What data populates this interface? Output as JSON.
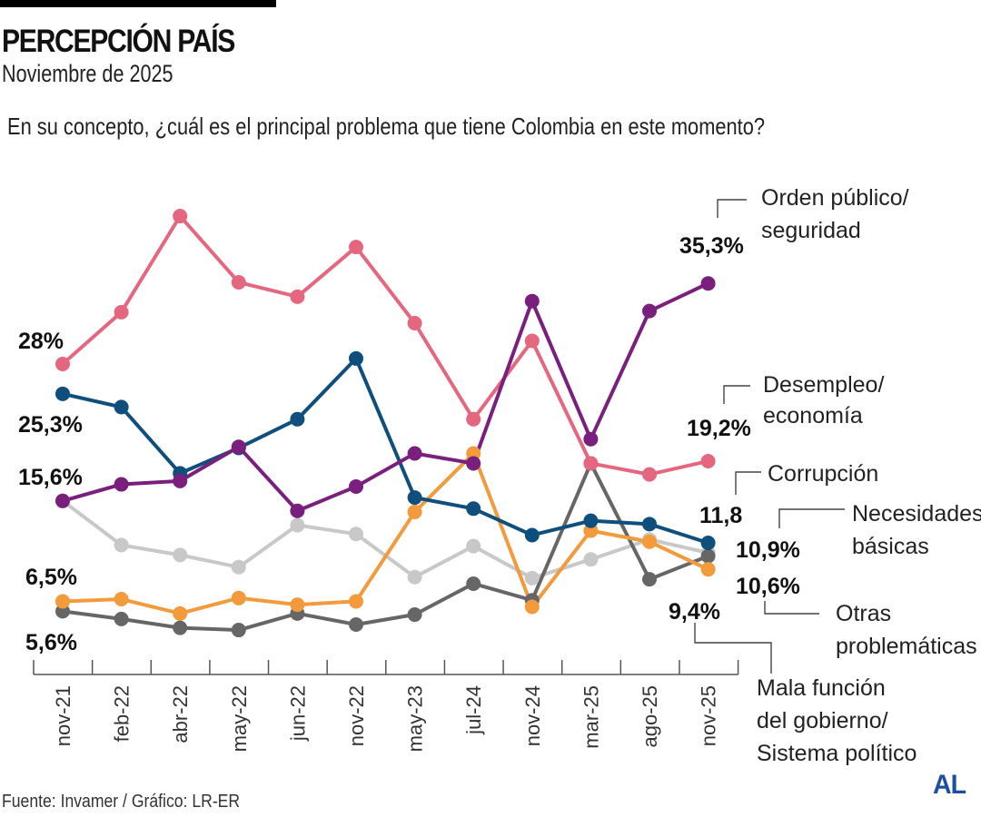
{
  "header": {
    "title": "PERCEPCIÓN PAÍS",
    "subtitle": "Noviembre de 2025",
    "question": "En su concepto, ¿cuál es el principal problema que tiene Colombia en este momento?"
  },
  "footer": {
    "source": "Fuente: Invamer / Gráfico: LR-ER",
    "logo": "AL"
  },
  "colors": {
    "orden_publico": "#7a1f7d",
    "desempleo": "#e5677f",
    "corrupcion": "#0e4f7e",
    "necesidades": "#c8c8c8",
    "otras": "#666666",
    "mala_funcion": "#f39a3c",
    "logo": "#1c4fa0"
  },
  "chart_data": {
    "type": "line",
    "title": "PERCEPCIÓN PAÍS",
    "subtitle": "Noviembre de 2025",
    "question": "En su concepto, ¿cuál es el principal problema que tiene Colombia en este momento?",
    "xlabel": "",
    "ylabel": "%",
    "ylim": [
      0,
      40
    ],
    "grid": false,
    "categories": [
      "nov-21",
      "feb-22",
      "abr-22",
      "may-22",
      "jun-22",
      "nov-22",
      "may-23",
      "jul-24",
      "nov-24",
      "mar-25",
      "ago-25",
      "nov-25"
    ],
    "series": [
      {
        "key": "desempleo",
        "name": "Desempleo/ economía",
        "label_lines": [
          "Desempleo/",
          "economía"
        ],
        "color": "#e5677f",
        "values": [
          28.0,
          32.7,
          41.4,
          35.4,
          34.1,
          38.6,
          31.7,
          23.0,
          30.1,
          19.0,
          18.0,
          19.2
        ],
        "start_label": "28%",
        "end_label": "19,2%"
      },
      {
        "key": "necesidades",
        "name": "Necesidades básicas",
        "label_lines": [
          "Necesidades",
          "básicas"
        ],
        "color": "#c8c8c8",
        "values": [
          15.6,
          11.6,
          10.7,
          9.6,
          13.4,
          12.6,
          8.7,
          11.5,
          8.6,
          10.3,
          12.1,
          10.9
        ],
        "start_label": null,
        "end_label": "10,9%"
      },
      {
        "key": "otras",
        "name": "Otras problemáticas",
        "label_lines": [
          "Otras",
          "problemáticas"
        ],
        "color": "#666666",
        "values": [
          5.6,
          4.9,
          4.1,
          3.9,
          5.4,
          4.4,
          5.3,
          8.1,
          6.6,
          19.0,
          8.5,
          10.6
        ],
        "start_label": "5,6%",
        "end_label": "10,6%"
      },
      {
        "key": "mala_funcion",
        "name": "Mala función del gobierno/ Sistema político",
        "label_lines": [
          "Mala función",
          "del gobierno/",
          "Sistema político"
        ],
        "color": "#f39a3c",
        "values": [
          6.5,
          6.7,
          5.4,
          6.8,
          6.2,
          6.5,
          14.6,
          19.9,
          6.0,
          12.9,
          11.9,
          9.4
        ],
        "start_label": "6,5%",
        "end_label": "9,4%"
      },
      {
        "key": "corrupcion",
        "name": "Corrupción",
        "label_lines": [
          "Corrupción"
        ],
        "color": "#0e4f7e",
        "values": [
          25.3,
          24.1,
          18.1,
          20.4,
          23.0,
          28.5,
          15.9,
          14.9,
          12.5,
          13.8,
          13.5,
          11.8
        ],
        "start_label": "25,3%",
        "end_label": "11,8"
      },
      {
        "key": "orden_publico",
        "name": "Orden público/ seguridad",
        "label_lines": [
          "Orden público/",
          "seguridad"
        ],
        "color": "#7a1f7d",
        "values": [
          15.6,
          17.1,
          17.4,
          20.5,
          14.7,
          16.9,
          19.9,
          19.0,
          33.7,
          21.2,
          32.8,
          35.3
        ],
        "start_label": "15,6%",
        "end_label": "35,3%"
      }
    ]
  }
}
